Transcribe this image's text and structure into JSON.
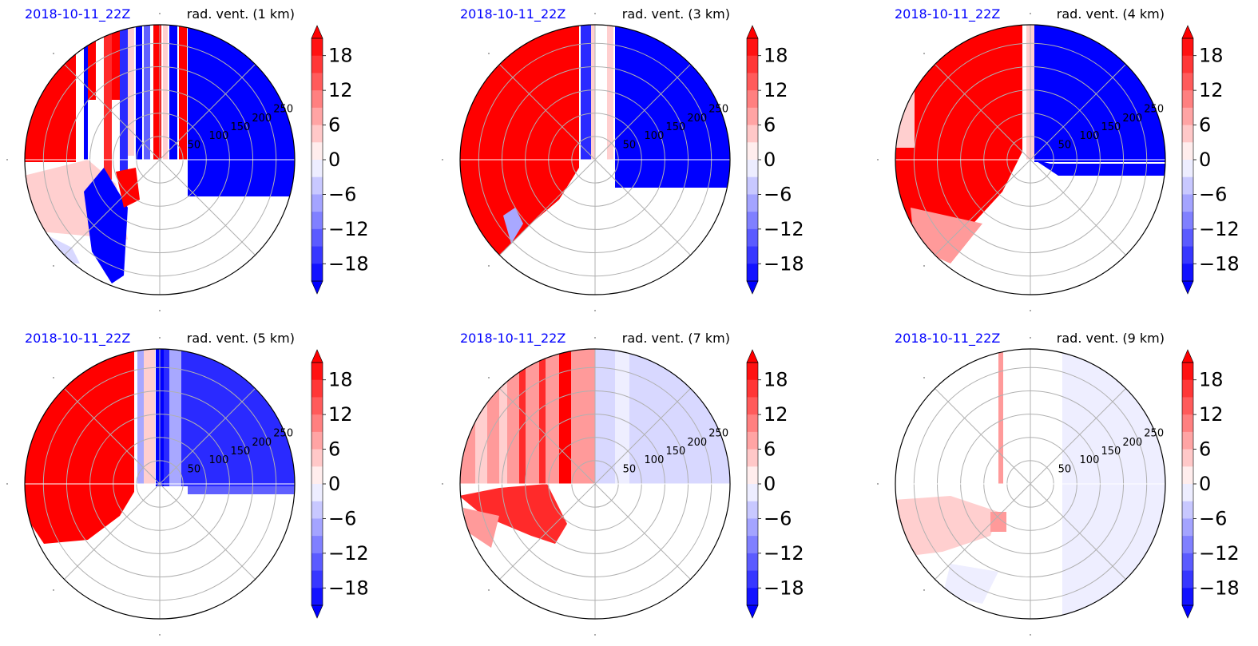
{
  "figure": {
    "colors": {
      "date_label": "#0000ff",
      "title_label": "#000000",
      "grid": "#b0b0b0",
      "frame": "#000000"
    },
    "colorbar": {
      "ticks": [
        "18",
        "12",
        "6",
        "0",
        "−6",
        "−12",
        "−18"
      ],
      "tick_values": [
        18,
        12,
        6,
        0,
        -6,
        -12,
        -18
      ],
      "range": [
        -21,
        21
      ],
      "extend": "both",
      "colormap": "bwr"
    },
    "radial_labels": [
      "50",
      "100",
      "150",
      "200",
      "250"
    ]
  },
  "chart_data": [
    {
      "type": "heatmap",
      "projection": "polar",
      "date": "2018-10-11_22Z",
      "title": "rad. vent. (1 km)",
      "colorbar_ticks": [
        18,
        12,
        6,
        0,
        -6,
        -12,
        -18
      ],
      "radial_ticks": [
        50,
        100,
        150,
        200,
        250
      ],
      "show_radial_labels": true
    },
    {
      "type": "heatmap",
      "projection": "polar",
      "date": "2018-10-11_22Z",
      "title": "rad. vent. (3 km)",
      "colorbar_ticks": [
        18,
        12,
        6,
        0,
        -6,
        -12,
        -18
      ],
      "radial_ticks": [
        50,
        100,
        150,
        200,
        250
      ],
      "show_radial_labels": true
    },
    {
      "type": "heatmap",
      "projection": "polar",
      "date": "2018-10-11_22Z",
      "title": "rad. vent. (4 km)",
      "colorbar_ticks": [
        18,
        12,
        6,
        0,
        -6,
        -12,
        -18
      ],
      "radial_ticks": [
        50,
        100,
        150,
        200,
        250
      ],
      "show_radial_labels": true
    },
    {
      "type": "heatmap",
      "projection": "polar",
      "date": "2018-10-11_22Z",
      "title": "rad. vent. (5 km)",
      "colorbar_ticks": [
        18,
        12,
        6,
        0,
        -6,
        -12,
        -18
      ],
      "radial_ticks": [
        50,
        100,
        150,
        200,
        250
      ],
      "show_radial_labels": true
    },
    {
      "type": "heatmap",
      "projection": "polar",
      "date": "2018-10-11_22Z",
      "title": "rad. vent. (7 km)",
      "colorbar_ticks": [
        18,
        12,
        6,
        0,
        -6,
        -12,
        -18
      ],
      "radial_ticks": [
        50,
        100,
        150,
        200,
        250
      ],
      "show_radial_labels": true
    },
    {
      "type": "heatmap",
      "projection": "polar",
      "date": "2018-10-11_22Z",
      "title": "rad. vent. (9 km)",
      "colorbar_ticks": [
        18,
        12,
        6,
        0,
        -6,
        -12,
        -18
      ],
      "radial_ticks": [
        50,
        100,
        150,
        200,
        250
      ],
      "show_radial_labels": true
    }
  ]
}
